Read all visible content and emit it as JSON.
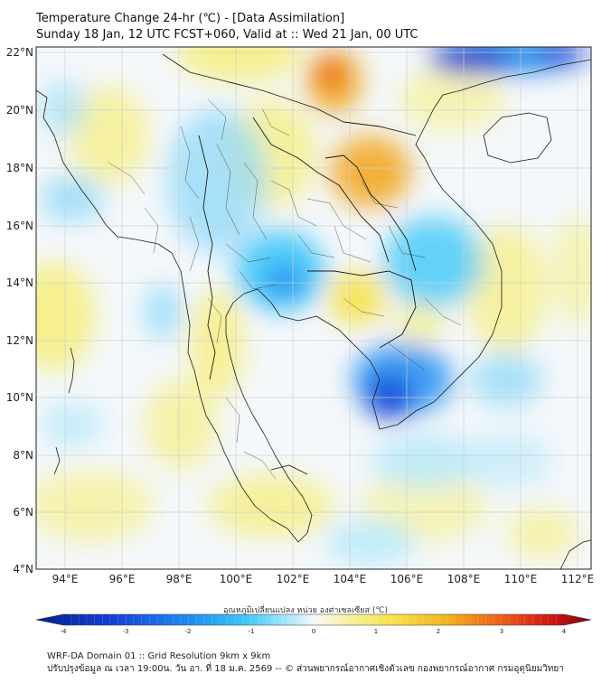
{
  "title": {
    "line1": "Temperature Change 24-hr (℃) - [Data Assimilation]",
    "line2": "Sunday 18 Jan, 12 UTC FCST+060, Valid at :: Wed 21 Jan, 00 UTC"
  },
  "map": {
    "lat_labels": [
      "22°N",
      "20°N",
      "18°N",
      "16°N",
      "14°N",
      "12°N",
      "10°N",
      "8°N",
      "6°N",
      "4°N"
    ],
    "lon_labels": [
      "94°E",
      "96°E",
      "98°E",
      "100°E",
      "102°E",
      "104°E",
      "106°E",
      "108°E",
      "110°E",
      "112°E"
    ],
    "lat_range": [
      4,
      22
    ],
    "lon_range": [
      93,
      112.5
    ],
    "colors": {
      "land_border": "#1a1a1a",
      "grid": "#cfcfcf",
      "neutral": "#f4f8fb",
      "strong_cold": "#0a3cc8",
      "cold": "#1ea8f0",
      "cool": "#8fd8f8",
      "warm": "#f6ee7a",
      "hot": "#f2a51a",
      "very_hot": "#e8541c"
    }
  },
  "colorbar": {
    "label": "อุณหภูมิเปลี่ยนแปลง หน่วย องศาเซลเซียส (℃)",
    "ticks": [
      "-4",
      "-3",
      "-2",
      "-1",
      "0",
      "1",
      "2",
      "3",
      "4"
    ],
    "range": [
      -4,
      4
    ]
  },
  "footer": {
    "line1": "WRF-DA Domain 01 :: Grid Resolution 9km x 9km",
    "line2": "ปรับปรุงข้อมูล ณ เวลา 19:00น. วัน อา. ที่ 18 ม.ค. 2569 -- © ส่วนพยากรณ์อากาศเชิงตัวเลข กองพยากรณ์อากาศ กรมอุตุนิยมวิทยา"
  }
}
